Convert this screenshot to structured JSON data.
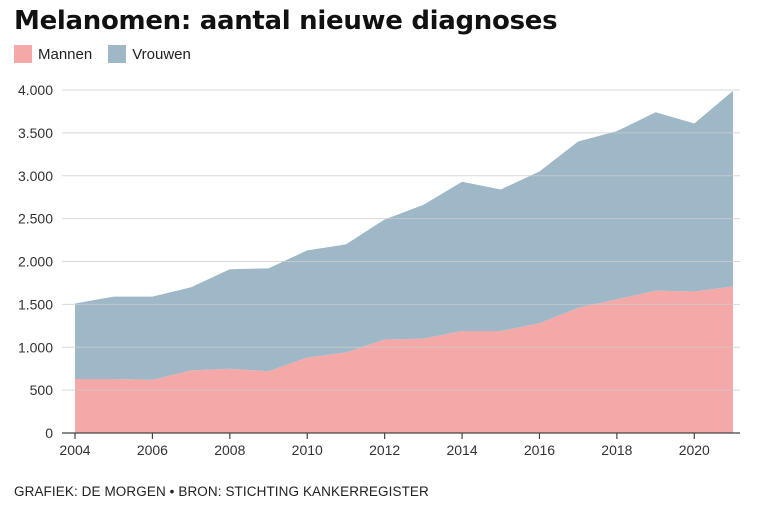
{
  "title": "Melanomen: aantal nieuwe diagnoses",
  "footer": "GRAFIEK: DE MORGEN • BRON: STICHTING KANKERREGISTER",
  "colors": {
    "mannen": "#f4a9a8",
    "vrouwen": "#9eb8c8",
    "grid": "#cccccc",
    "axis": "#444444"
  },
  "chart_data": {
    "type": "area",
    "stacked": true,
    "title": "Melanomen: aantal nieuwe diagnoses",
    "xlabel": "",
    "ylabel": "",
    "x": [
      2004,
      2005,
      2006,
      2007,
      2008,
      2009,
      2010,
      2011,
      2012,
      2013,
      2014,
      2015,
      2016,
      2017,
      2018,
      2019,
      2020,
      2021
    ],
    "series": [
      {
        "name": "Mannen",
        "color": "#f4a9a8",
        "values": [
          630,
          630,
          620,
          730,
          750,
          720,
          880,
          940,
          1090,
          1100,
          1190,
          1190,
          1280,
          1460,
          1560,
          1660,
          1650,
          1710
        ]
      },
      {
        "name": "Vrouwen",
        "color": "#9eb8c8",
        "values": [
          880,
          960,
          970,
          970,
          1160,
          1200,
          1250,
          1260,
          1400,
          1560,
          1740,
          1650,
          1770,
          1940,
          1960,
          2080,
          1960,
          2280
        ]
      }
    ],
    "ylim": [
      0,
      4000
    ],
    "yticks": [
      0,
      500,
      1000,
      1500,
      2000,
      2500,
      3000,
      3500,
      4000
    ],
    "ytick_labels": [
      "0",
      "500",
      "1.000",
      "1.500",
      "2.000",
      "2.500",
      "3.000",
      "3.500",
      "4.000"
    ],
    "xticks": [
      2004,
      2006,
      2008,
      2010,
      2012,
      2014,
      2016,
      2018,
      2020
    ],
    "xtick_labels": [
      "2004",
      "2006",
      "2008",
      "2010",
      "2012",
      "2014",
      "2016",
      "2018",
      "2020"
    ],
    "grid": true,
    "legend": "top-left"
  }
}
